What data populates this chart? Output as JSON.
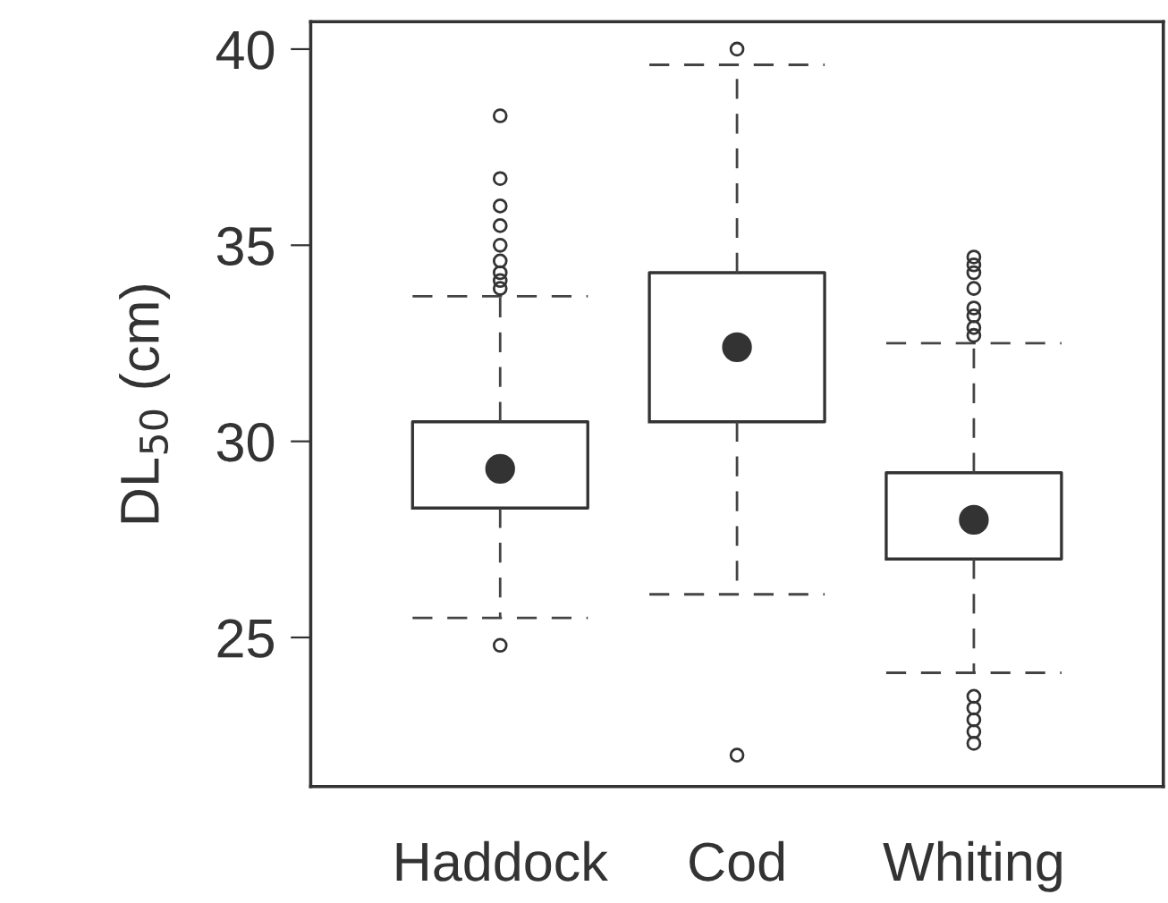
{
  "chart_data": {
    "type": "box",
    "ylabel": "DL$_{50}$ (cm)",
    "categories": [
      "Haddock",
      "Cod",
      "Whiting"
    ],
    "boxes": [
      {
        "low": 25.5,
        "q1": 28.3,
        "median": 29.3,
        "q3": 30.5,
        "high": 33.7,
        "outliers": [
          38.3,
          36.7,
          36.0,
          35.5,
          35.0,
          34.6,
          34.3,
          34.1,
          33.9,
          24.8
        ]
      },
      {
        "low": 26.1,
        "q1": 30.5,
        "median": 32.4,
        "q3": 34.3,
        "high": 39.6,
        "outliers": [
          40.0,
          22.0
        ]
      },
      {
        "low": 24.1,
        "q1": 27.0,
        "median": 28.0,
        "q3": 29.2,
        "high": 32.5,
        "outliers": [
          34.7,
          34.5,
          34.3,
          33.9,
          33.4,
          33.2,
          32.9,
          32.7,
          23.5,
          23.2,
          22.9,
          22.6,
          22.3
        ]
      }
    ],
    "ylim": [
      21.2,
      40.7
    ],
    "yticks": [
      25,
      30,
      35,
      40
    ]
  }
}
